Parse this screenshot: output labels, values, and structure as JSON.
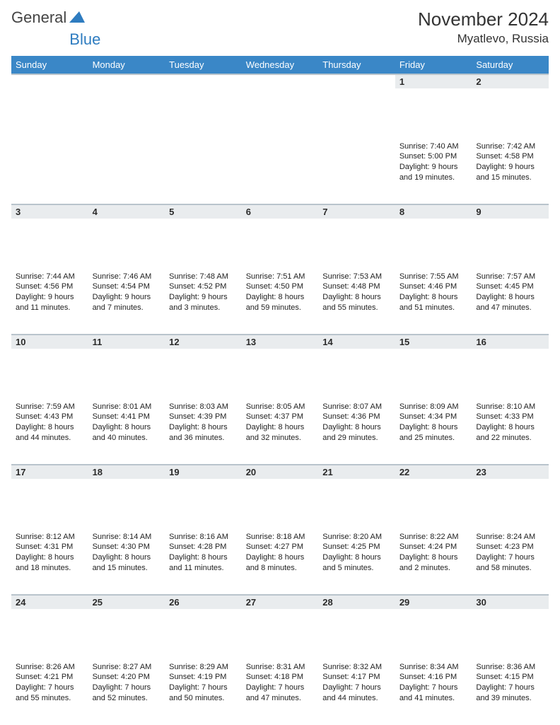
{
  "brand": {
    "part1": "General",
    "part2": "Blue"
  },
  "title": "November 2024",
  "location": "Myatlevo, Russia",
  "colors": {
    "header_bg": "#3a87c7",
    "header_text": "#ffffff",
    "daynum_bg": "#e9ecee",
    "border": "#b9c4cc",
    "body_text": "#222222",
    "brand_gray": "#444444",
    "brand_blue": "#2e7cc0",
    "page_bg": "#ffffff"
  },
  "typography": {
    "title_fontsize": 26,
    "location_fontsize": 17,
    "header_fontsize": 13,
    "daynum_fontsize": 13,
    "body_fontsize": 11
  },
  "weekdays": [
    "Sunday",
    "Monday",
    "Tuesday",
    "Wednesday",
    "Thursday",
    "Friday",
    "Saturday"
  ],
  "weeks": [
    [
      {
        "day": "",
        "sunrise": "",
        "sunset": "",
        "daylight": ""
      },
      {
        "day": "",
        "sunrise": "",
        "sunset": "",
        "daylight": ""
      },
      {
        "day": "",
        "sunrise": "",
        "sunset": "",
        "daylight": ""
      },
      {
        "day": "",
        "sunrise": "",
        "sunset": "",
        "daylight": ""
      },
      {
        "day": "",
        "sunrise": "",
        "sunset": "",
        "daylight": ""
      },
      {
        "day": "1",
        "sunrise": "Sunrise: 7:40 AM",
        "sunset": "Sunset: 5:00 PM",
        "daylight": "Daylight: 9 hours and 19 minutes."
      },
      {
        "day": "2",
        "sunrise": "Sunrise: 7:42 AM",
        "sunset": "Sunset: 4:58 PM",
        "daylight": "Daylight: 9 hours and 15 minutes."
      }
    ],
    [
      {
        "day": "3",
        "sunrise": "Sunrise: 7:44 AM",
        "sunset": "Sunset: 4:56 PM",
        "daylight": "Daylight: 9 hours and 11 minutes."
      },
      {
        "day": "4",
        "sunrise": "Sunrise: 7:46 AM",
        "sunset": "Sunset: 4:54 PM",
        "daylight": "Daylight: 9 hours and 7 minutes."
      },
      {
        "day": "5",
        "sunrise": "Sunrise: 7:48 AM",
        "sunset": "Sunset: 4:52 PM",
        "daylight": "Daylight: 9 hours and 3 minutes."
      },
      {
        "day": "6",
        "sunrise": "Sunrise: 7:51 AM",
        "sunset": "Sunset: 4:50 PM",
        "daylight": "Daylight: 8 hours and 59 minutes."
      },
      {
        "day": "7",
        "sunrise": "Sunrise: 7:53 AM",
        "sunset": "Sunset: 4:48 PM",
        "daylight": "Daylight: 8 hours and 55 minutes."
      },
      {
        "day": "8",
        "sunrise": "Sunrise: 7:55 AM",
        "sunset": "Sunset: 4:46 PM",
        "daylight": "Daylight: 8 hours and 51 minutes."
      },
      {
        "day": "9",
        "sunrise": "Sunrise: 7:57 AM",
        "sunset": "Sunset: 4:45 PM",
        "daylight": "Daylight: 8 hours and 47 minutes."
      }
    ],
    [
      {
        "day": "10",
        "sunrise": "Sunrise: 7:59 AM",
        "sunset": "Sunset: 4:43 PM",
        "daylight": "Daylight: 8 hours and 44 minutes."
      },
      {
        "day": "11",
        "sunrise": "Sunrise: 8:01 AM",
        "sunset": "Sunset: 4:41 PM",
        "daylight": "Daylight: 8 hours and 40 minutes."
      },
      {
        "day": "12",
        "sunrise": "Sunrise: 8:03 AM",
        "sunset": "Sunset: 4:39 PM",
        "daylight": "Daylight: 8 hours and 36 minutes."
      },
      {
        "day": "13",
        "sunrise": "Sunrise: 8:05 AM",
        "sunset": "Sunset: 4:37 PM",
        "daylight": "Daylight: 8 hours and 32 minutes."
      },
      {
        "day": "14",
        "sunrise": "Sunrise: 8:07 AM",
        "sunset": "Sunset: 4:36 PM",
        "daylight": "Daylight: 8 hours and 29 minutes."
      },
      {
        "day": "15",
        "sunrise": "Sunrise: 8:09 AM",
        "sunset": "Sunset: 4:34 PM",
        "daylight": "Daylight: 8 hours and 25 minutes."
      },
      {
        "day": "16",
        "sunrise": "Sunrise: 8:10 AM",
        "sunset": "Sunset: 4:33 PM",
        "daylight": "Daylight: 8 hours and 22 minutes."
      }
    ],
    [
      {
        "day": "17",
        "sunrise": "Sunrise: 8:12 AM",
        "sunset": "Sunset: 4:31 PM",
        "daylight": "Daylight: 8 hours and 18 minutes."
      },
      {
        "day": "18",
        "sunrise": "Sunrise: 8:14 AM",
        "sunset": "Sunset: 4:30 PM",
        "daylight": "Daylight: 8 hours and 15 minutes."
      },
      {
        "day": "19",
        "sunrise": "Sunrise: 8:16 AM",
        "sunset": "Sunset: 4:28 PM",
        "daylight": "Daylight: 8 hours and 11 minutes."
      },
      {
        "day": "20",
        "sunrise": "Sunrise: 8:18 AM",
        "sunset": "Sunset: 4:27 PM",
        "daylight": "Daylight: 8 hours and 8 minutes."
      },
      {
        "day": "21",
        "sunrise": "Sunrise: 8:20 AM",
        "sunset": "Sunset: 4:25 PM",
        "daylight": "Daylight: 8 hours and 5 minutes."
      },
      {
        "day": "22",
        "sunrise": "Sunrise: 8:22 AM",
        "sunset": "Sunset: 4:24 PM",
        "daylight": "Daylight: 8 hours and 2 minutes."
      },
      {
        "day": "23",
        "sunrise": "Sunrise: 8:24 AM",
        "sunset": "Sunset: 4:23 PM",
        "daylight": "Daylight: 7 hours and 58 minutes."
      }
    ],
    [
      {
        "day": "24",
        "sunrise": "Sunrise: 8:26 AM",
        "sunset": "Sunset: 4:21 PM",
        "daylight": "Daylight: 7 hours and 55 minutes."
      },
      {
        "day": "25",
        "sunrise": "Sunrise: 8:27 AM",
        "sunset": "Sunset: 4:20 PM",
        "daylight": "Daylight: 7 hours and 52 minutes."
      },
      {
        "day": "26",
        "sunrise": "Sunrise: 8:29 AM",
        "sunset": "Sunset: 4:19 PM",
        "daylight": "Daylight: 7 hours and 50 minutes."
      },
      {
        "day": "27",
        "sunrise": "Sunrise: 8:31 AM",
        "sunset": "Sunset: 4:18 PM",
        "daylight": "Daylight: 7 hours and 47 minutes."
      },
      {
        "day": "28",
        "sunrise": "Sunrise: 8:32 AM",
        "sunset": "Sunset: 4:17 PM",
        "daylight": "Daylight: 7 hours and 44 minutes."
      },
      {
        "day": "29",
        "sunrise": "Sunrise: 8:34 AM",
        "sunset": "Sunset: 4:16 PM",
        "daylight": "Daylight: 7 hours and 41 minutes."
      },
      {
        "day": "30",
        "sunrise": "Sunrise: 8:36 AM",
        "sunset": "Sunset: 4:15 PM",
        "daylight": "Daylight: 7 hours and 39 minutes."
      }
    ]
  ]
}
